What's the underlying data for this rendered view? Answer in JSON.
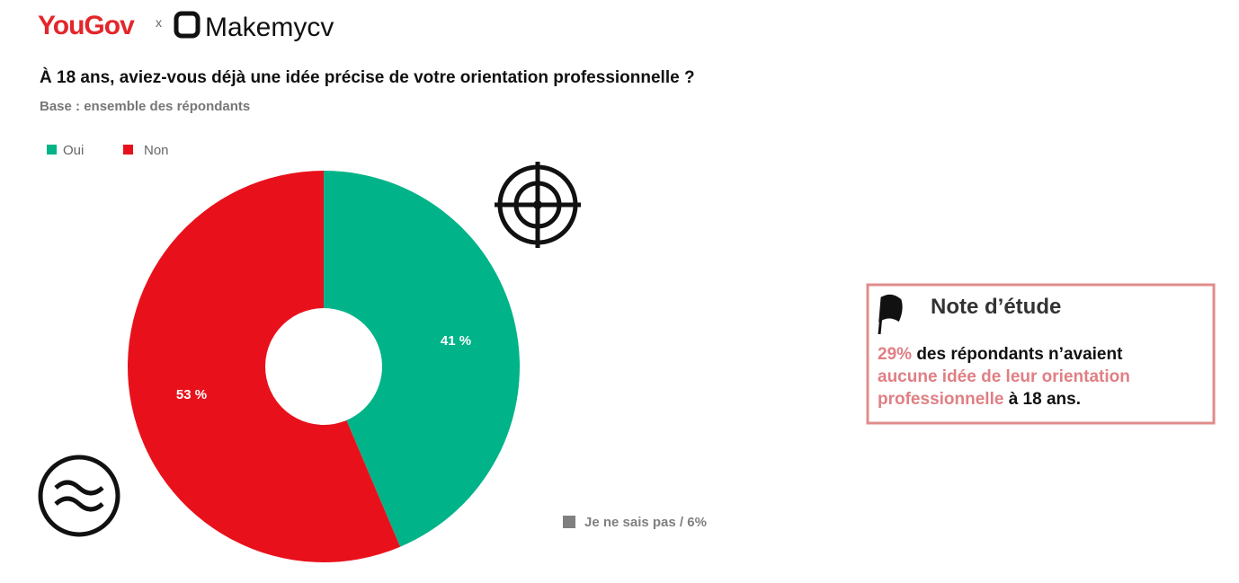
{
  "header": {
    "brand_left": "YouGov",
    "separator": "x",
    "brand_right": "Makemycv"
  },
  "chart_data": {
    "type": "pie",
    "title": "À 18 ans, aviez-vous déjà une idée précise de votre orientation professionnelle ?",
    "subtitle": "Base : ensemble des répondants",
    "categories": [
      "Oui",
      "Non"
    ],
    "values": [
      41,
      53
    ],
    "value_labels": [
      "41 %",
      "53 %"
    ],
    "colors": [
      "#00b388",
      "#e8111b"
    ],
    "donut": true,
    "annotation": "Je ne sais pas / 6%",
    "annotation_color": "#808080"
  },
  "note": {
    "title": "Note d’étude",
    "lines": [
      [
        "29%",
        "des répondants n’avaient"
      ],
      [
        "aucune idée de leur orientation"
      ],
      [
        "professionnelle",
        "à 18 ans."
      ]
    ]
  }
}
